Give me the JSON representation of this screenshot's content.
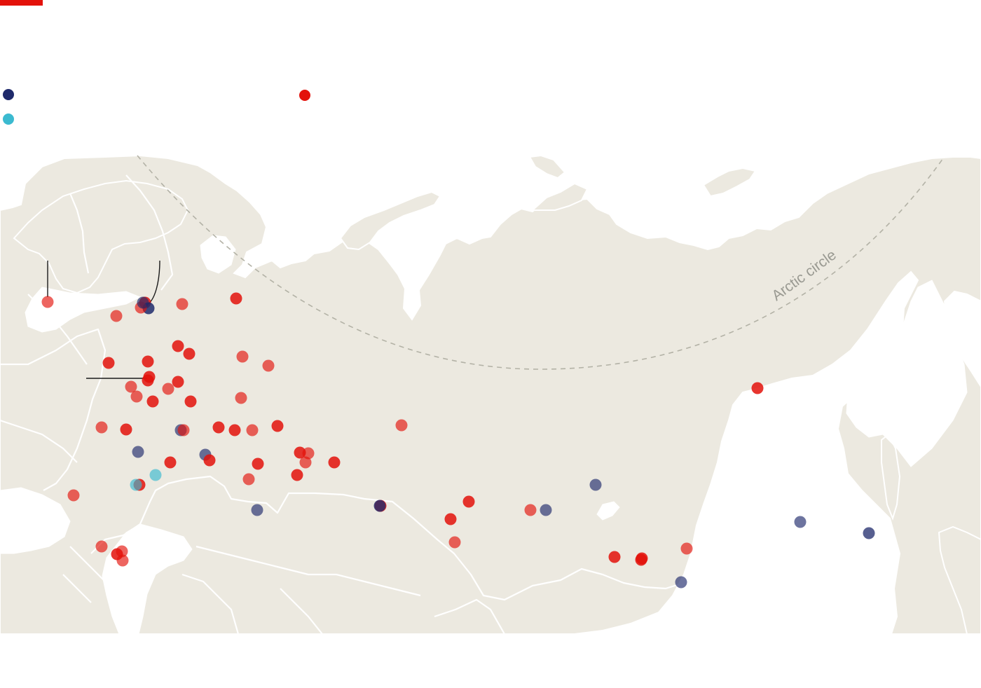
{
  "colors": {
    "brand": "#e3120b",
    "land": "#ece9e0",
    "border": "#ffffff",
    "water": "#ffffff",
    "arctic_line": "#b3b2a6",
    "legend_navy": "#1f2a6b",
    "legend_cyan": "#3bbad0",
    "legend_red": "#e3120b"
  },
  "legend": [
    {
      "key": "navy",
      "label": "",
      "color": "#1f2a6b"
    },
    {
      "key": "cyan",
      "label": "",
      "color": "#3bbad0"
    },
    {
      "key": "red",
      "label": "",
      "color": "#e3120b"
    }
  ],
  "arctic_circle_label": "Arctic circle",
  "points": [
    {
      "c": "red",
      "o": 0.65
    },
    {
      "c": "red",
      "o": 0.85
    },
    {
      "c": "navy",
      "o": 0.85
    },
    {
      "c": "red",
      "o": 0.65
    },
    {
      "c": "navy",
      "o": 0.65
    },
    {
      "c": "red",
      "o": 0.65
    },
    {
      "c": "red",
      "o": 0.85
    },
    {
      "c": "red",
      "o": 0.65
    },
    {
      "c": "red",
      "o": 0.85
    },
    {
      "c": "red",
      "o": 0.85
    },
    {
      "c": "red",
      "o": 0.65
    },
    {
      "c": "red",
      "o": 0.65
    },
    {
      "c": "red",
      "o": 0.85
    },
    {
      "c": "red",
      "o": 0.85
    },
    {
      "c": "red",
      "o": 0.85
    },
    {
      "c": "red",
      "o": 0.85
    },
    {
      "c": "red",
      "o": 0.65
    },
    {
      "c": "red",
      "o": 0.65
    },
    {
      "c": "red",
      "o": 0.85
    },
    {
      "c": "red",
      "o": 0.65
    },
    {
      "c": "red",
      "o": 0.85
    },
    {
      "c": "red",
      "o": 0.85
    },
    {
      "c": "red",
      "o": 0.65
    },
    {
      "c": "navy",
      "o": 0.65
    },
    {
      "c": "red",
      "o": 0.65
    },
    {
      "c": "red",
      "o": 0.85
    },
    {
      "c": "red",
      "o": 0.85
    },
    {
      "c": "red",
      "o": 0.65
    },
    {
      "c": "red",
      "o": 0.85
    },
    {
      "c": "red",
      "o": 0.65
    },
    {
      "c": "red",
      "o": 0.85
    },
    {
      "c": "navy",
      "o": 0.65
    },
    {
      "c": "navy",
      "o": 0.65
    },
    {
      "c": "red",
      "o": 0.85
    },
    {
      "c": "red",
      "o": 0.85
    },
    {
      "c": "red",
      "o": 0.85
    },
    {
      "c": "red",
      "o": 0.65
    },
    {
      "c": "red",
      "o": 0.65
    },
    {
      "c": "red",
      "o": 0.85
    },
    {
      "c": "red",
      "o": 0.65
    },
    {
      "c": "red",
      "o": 0.85
    },
    {
      "c": "red",
      "o": 0.85
    },
    {
      "c": "cyan",
      "o": 0.65
    },
    {
      "c": "red",
      "o": 0.85
    },
    {
      "c": "cyan",
      "o": 0.65
    },
    {
      "c": "red",
      "o": 0.65
    },
    {
      "c": "navy",
      "o": 0.65
    },
    {
      "c": "red",
      "o": 0.85
    },
    {
      "c": "navy",
      "o": 0.8
    },
    {
      "c": "red",
      "o": 0.85
    },
    {
      "c": "red",
      "o": 0.85
    },
    {
      "c": "red",
      "o": 0.65
    },
    {
      "c": "red",
      "o": 0.65
    },
    {
      "c": "red",
      "o": 0.65
    },
    {
      "c": "navy",
      "o": 0.65
    },
    {
      "c": "navy",
      "o": 0.65
    },
    {
      "c": "red",
      "o": 0.85
    },
    {
      "c": "red",
      "o": 0.85
    },
    {
      "c": "red",
      "o": 0.85
    },
    {
      "c": "red",
      "o": 0.65
    },
    {
      "c": "navy",
      "o": 0.65
    },
    {
      "c": "red",
      "o": 0.85
    },
    {
      "c": "navy",
      "o": 0.65
    },
    {
      "c": "navy",
      "o": 0.75
    },
    {
      "c": "red",
      "o": 0.65
    },
    {
      "c": "red",
      "o": 0.65
    },
    {
      "c": "red",
      "o": 0.85
    },
    {
      "c": "red",
      "o": 0.65
    }
  ]
}
